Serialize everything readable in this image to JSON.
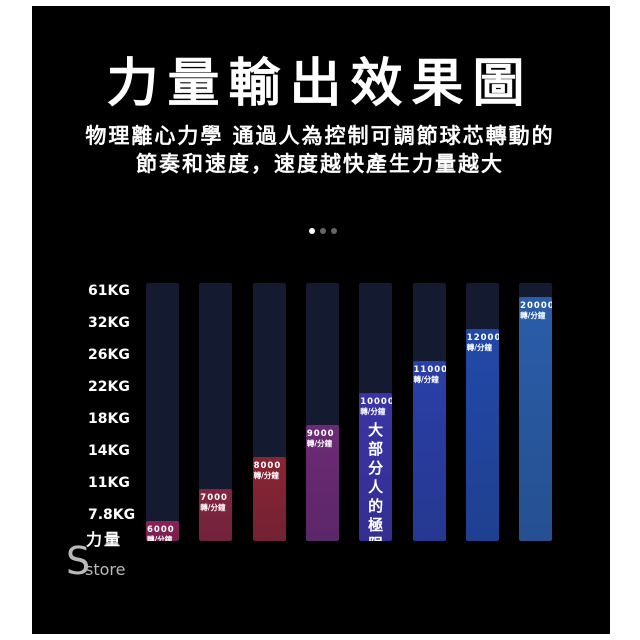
{
  "title": "力量輸出效果圖",
  "subtitle_line1": "物理離心力學 通過人為控制可調節球芯轉動的",
  "subtitle_line2": "節奏和速度，速度越快產生力量越大",
  "carousel": {
    "count": 3,
    "active": 0,
    "colors": {
      "active": "#ffffff",
      "inactive": "#666666"
    }
  },
  "chart_data": {
    "type": "bar",
    "title": "力量輸出效果圖",
    "ylabel": "力量",
    "yticks": [
      "61KG",
      "32KG",
      "26KG",
      "22KG",
      "18KG",
      "14KG",
      "11KG",
      "7.8KG"
    ],
    "unit_label": "轉/分鐘",
    "categories": [
      "6000",
      "7000",
      "8000",
      "9000",
      "10000",
      "11000",
      "12000",
      "20000"
    ],
    "values": [
      7.8,
      11,
      14,
      18,
      22,
      26,
      32,
      61
    ],
    "annotation": "大部分人的極限",
    "annotation_bar": "10000",
    "bar_colors": [
      "#8d2156",
      "#86243f",
      "#8a2434",
      "#6d2a76",
      "#3b34a8",
      "#2a3fa8",
      "#2249a8",
      "#2a5da9"
    ]
  },
  "logo": {
    "letter": "S",
    "text": "store"
  }
}
